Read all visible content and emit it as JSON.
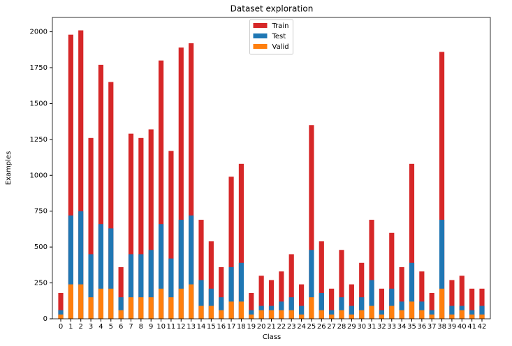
{
  "chart_data": {
    "type": "bar",
    "title": "Dataset exploration",
    "x_label": "Class",
    "y_label": "Examples",
    "categories": [
      "0",
      "1",
      "2",
      "3",
      "4",
      "5",
      "6",
      "7",
      "8",
      "9",
      "10",
      "11",
      "12",
      "13",
      "14",
      "15",
      "16",
      "17",
      "18",
      "19",
      "20",
      "21",
      "22",
      "23",
      "24",
      "25",
      "26",
      "27",
      "28",
      "29",
      "30",
      "31",
      "32",
      "33",
      "34",
      "35",
      "36",
      "37",
      "38",
      "39",
      "40",
      "41",
      "42"
    ],
    "series": [
      {
        "name": "Train",
        "color": "#d62728",
        "values": [
          180,
          1980,
          2010,
          1260,
          1770,
          1650,
          360,
          1290,
          1260,
          1320,
          1800,
          1170,
          1890,
          1920,
          690,
          540,
          360,
          990,
          1080,
          180,
          300,
          270,
          330,
          450,
          240,
          1350,
          540,
          210,
          480,
          240,
          390,
          690,
          210,
          599,
          360,
          1080,
          330,
          180,
          1860,
          270,
          300,
          210,
          210
        ]
      },
      {
        "name": "Test",
        "color": "#1f77b4",
        "values": [
          60,
          720,
          750,
          450,
          660,
          630,
          150,
          450,
          450,
          480,
          660,
          420,
          690,
          720,
          270,
          210,
          150,
          360,
          390,
          60,
          90,
          90,
          120,
          150,
          90,
          480,
          180,
          60,
          150,
          90,
          150,
          270,
          60,
          210,
          120,
          390,
          120,
          60,
          690,
          90,
          90,
          60,
          90
        ]
      },
      {
        "name": "Valid",
        "color": "#ff7f0e",
        "values": [
          30,
          240,
          240,
          150,
          210,
          210,
          60,
          150,
          150,
          150,
          210,
          150,
          210,
          240,
          90,
          90,
          60,
          120,
          120,
          30,
          60,
          60,
          60,
          60,
          30,
          150,
          60,
          30,
          60,
          30,
          60,
          90,
          30,
          90,
          60,
          120,
          60,
          30,
          210,
          30,
          60,
          30,
          30
        ]
      }
    ],
    "ylim": [
      0,
      2100
    ],
    "yticks": [
      0,
      250,
      500,
      750,
      1000,
      1250,
      1500,
      1750,
      2000
    ],
    "grid": false,
    "legend": "upper center",
    "overlap": true
  }
}
